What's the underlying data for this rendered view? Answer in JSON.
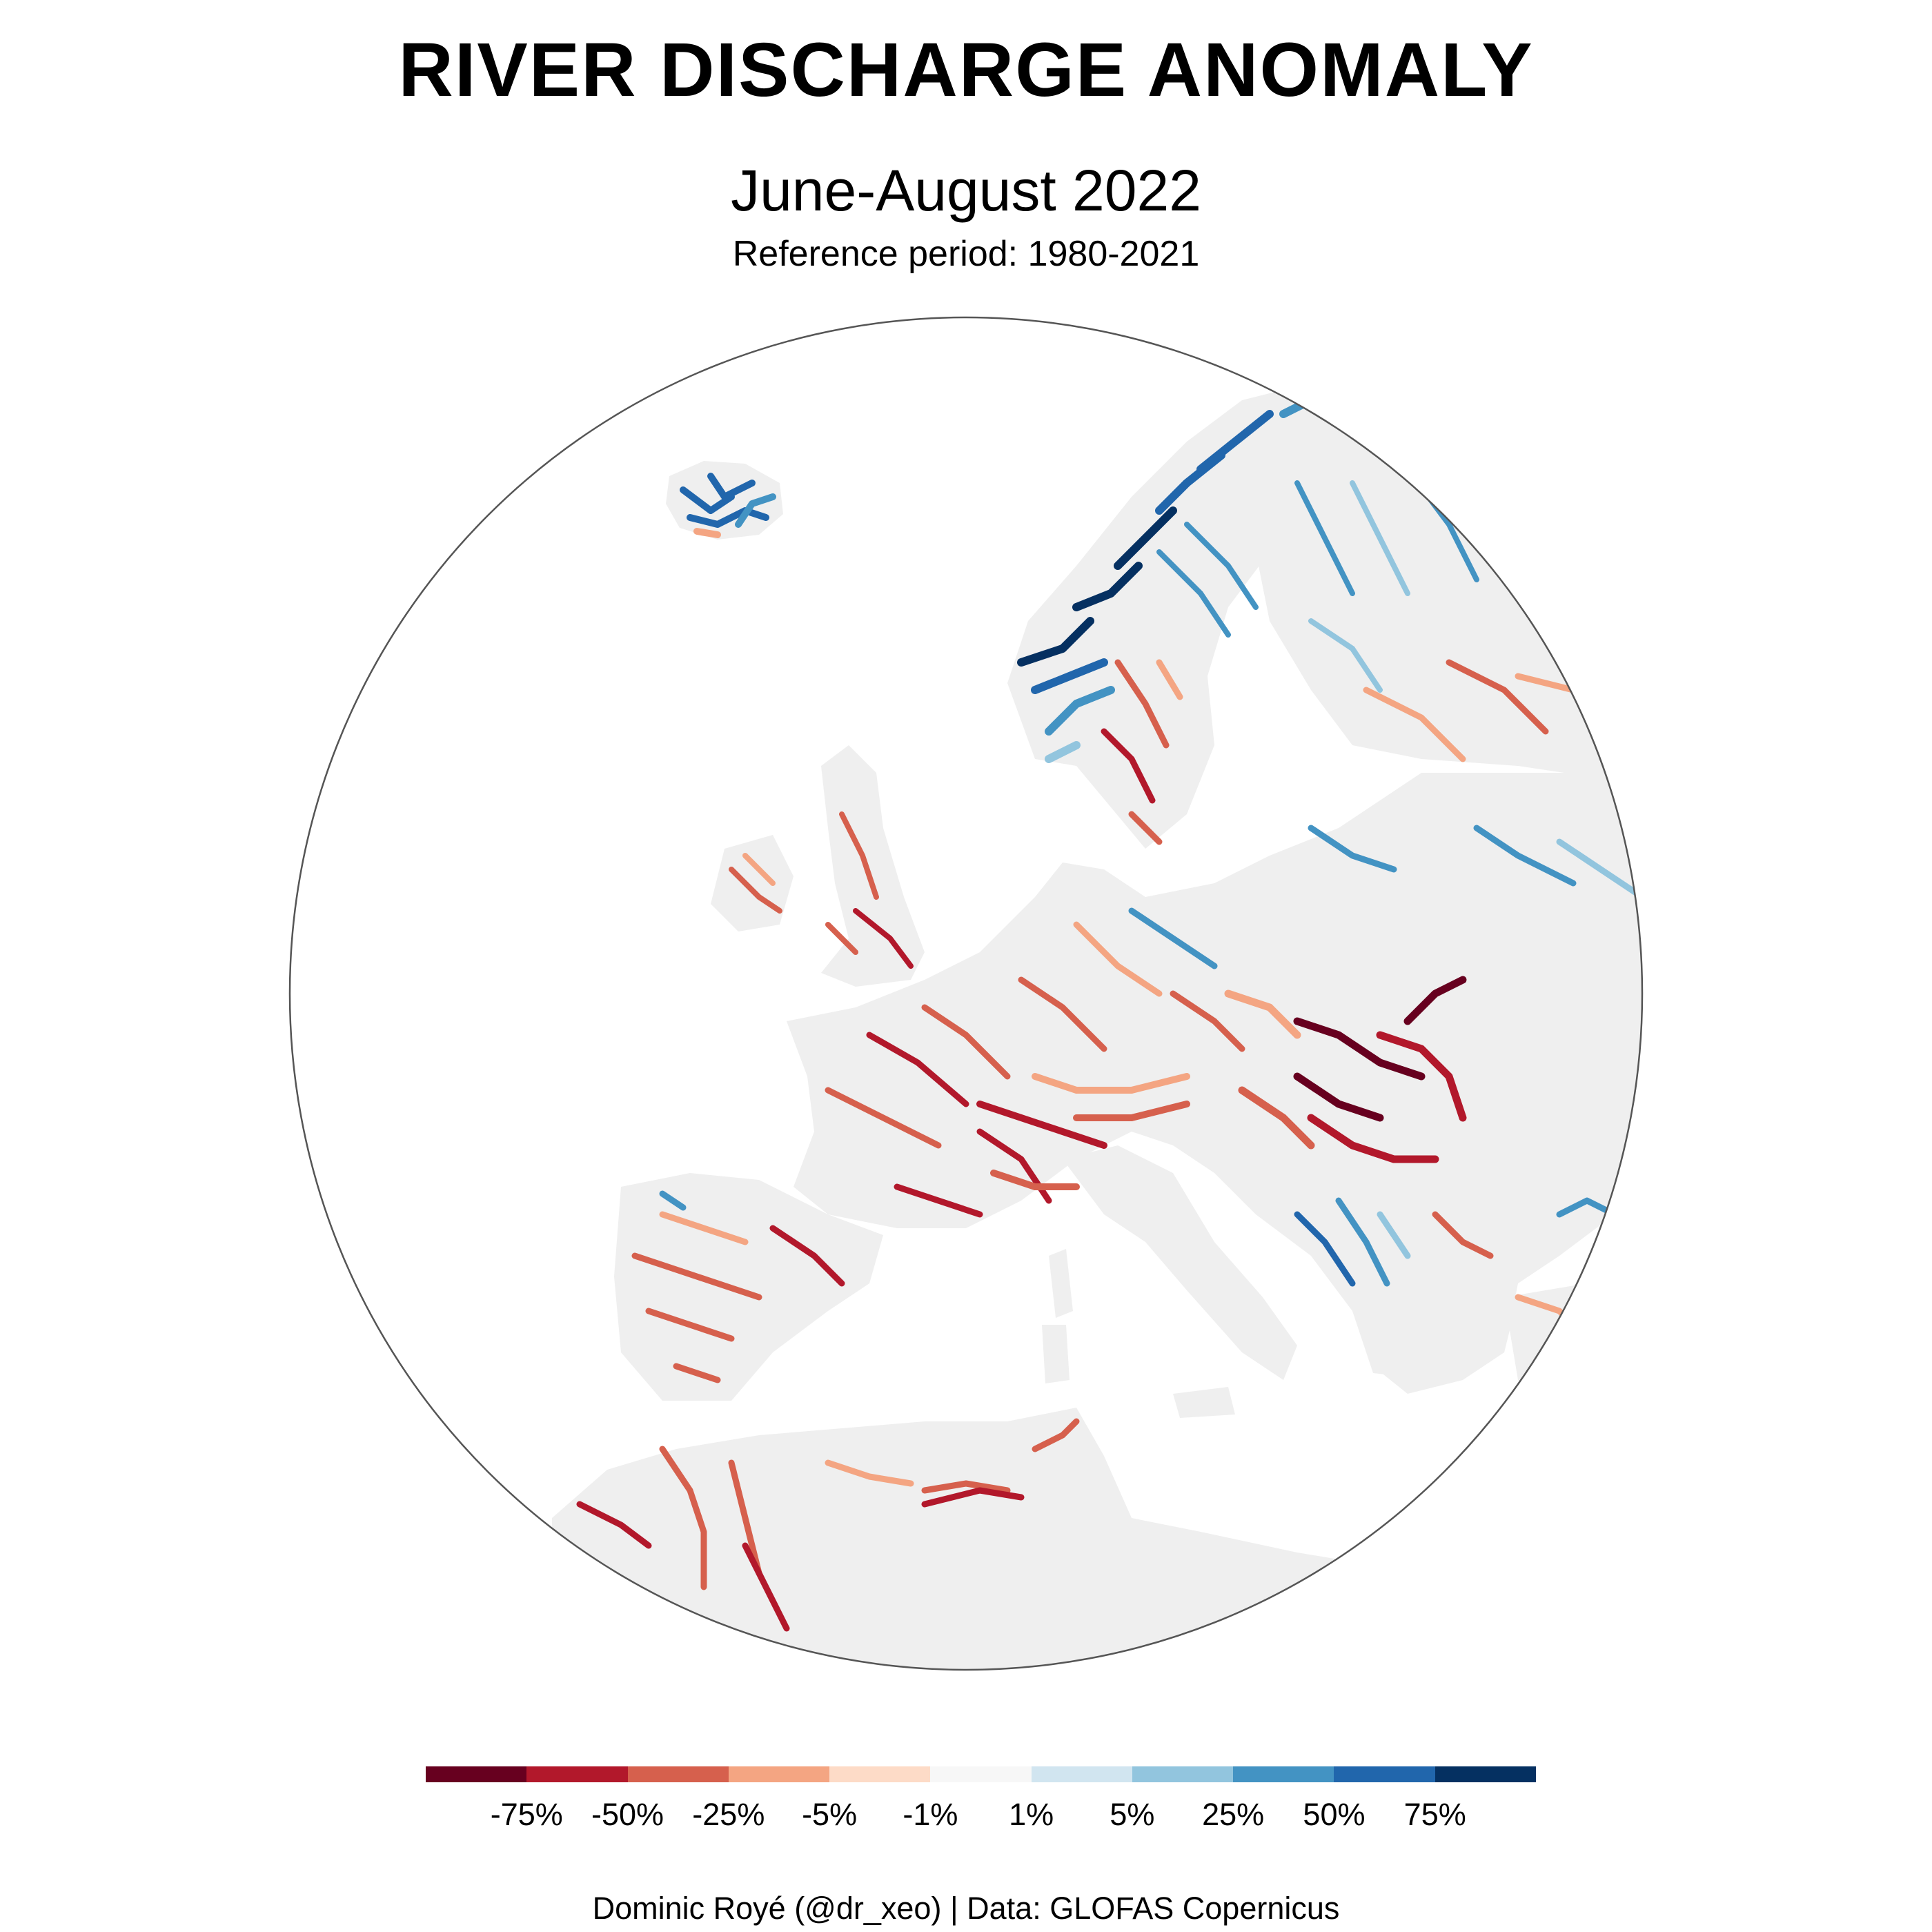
{
  "header": {
    "title": "RIVER DISCHARGE ANOMALY",
    "subtitle": "June-August 2022",
    "reference": "Reference period: 1980-2021"
  },
  "legend": {
    "colors": [
      "#67001f",
      "#b2182b",
      "#d6604d",
      "#f4a582",
      "#fddbc7",
      "#f7f7f7",
      "#d1e5f0",
      "#92c5de",
      "#4393c3",
      "#2166ac",
      "#053061"
    ],
    "labels": [
      "-75%",
      "-50%",
      "-25%",
      "-5%",
      "-1%",
      "1%",
      "5%",
      "25%",
      "50%",
      "75%"
    ]
  },
  "caption": "Dominic Royé (@dr_xeo) | Data: GLOFAS Copernicus",
  "map": {
    "land_color": "#efefef",
    "outline_color": "#555555",
    "regions": [
      {
        "name": "iceland",
        "category": "wet"
      },
      {
        "name": "norway",
        "category": "very-wet"
      },
      {
        "name": "sweden-north",
        "category": "wet"
      },
      {
        "name": "finland",
        "category": "moderately-wet"
      },
      {
        "name": "sweden-south",
        "category": "moderately-dry"
      },
      {
        "name": "baltics-russia",
        "category": "mixed"
      },
      {
        "name": "uk-ireland",
        "category": "moderately-dry"
      },
      {
        "name": "western-europe",
        "category": "dry"
      },
      {
        "name": "alps",
        "category": "dry"
      },
      {
        "name": "hungary-romania",
        "category": "very-dry"
      },
      {
        "name": "iberia",
        "category": "dry"
      },
      {
        "name": "balkans",
        "category": "wet"
      },
      {
        "name": "north-africa",
        "category": "dry"
      }
    ]
  }
}
